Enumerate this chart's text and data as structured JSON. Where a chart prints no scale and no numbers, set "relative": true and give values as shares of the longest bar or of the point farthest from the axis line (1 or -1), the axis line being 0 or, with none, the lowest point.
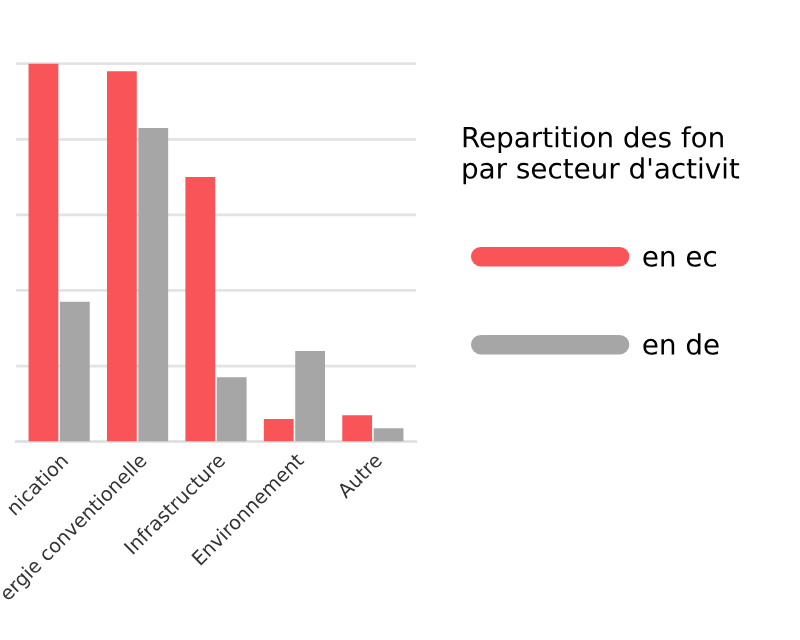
{
  "chart_data": {
    "type": "bar",
    "relative": true,
    "legend_title": "Repartition des fon\npar secteur d'activit",
    "categories": [
      "nication",
      "ergie conventionelle",
      "Infrastructure",
      "Environnement",
      "Autre"
    ],
    "series": [
      {
        "name": "en ec",
        "color": "#f95458",
        "values": [
          1,
          0.98,
          0.7,
          0.06,
          0.07
        ]
      },
      {
        "name": "en de",
        "color": "#a6a6a6",
        "values": [
          0.37,
          0.83,
          0.17,
          0.24,
          0.035
        ]
      }
    ],
    "grid": "y",
    "legend": "right"
  }
}
